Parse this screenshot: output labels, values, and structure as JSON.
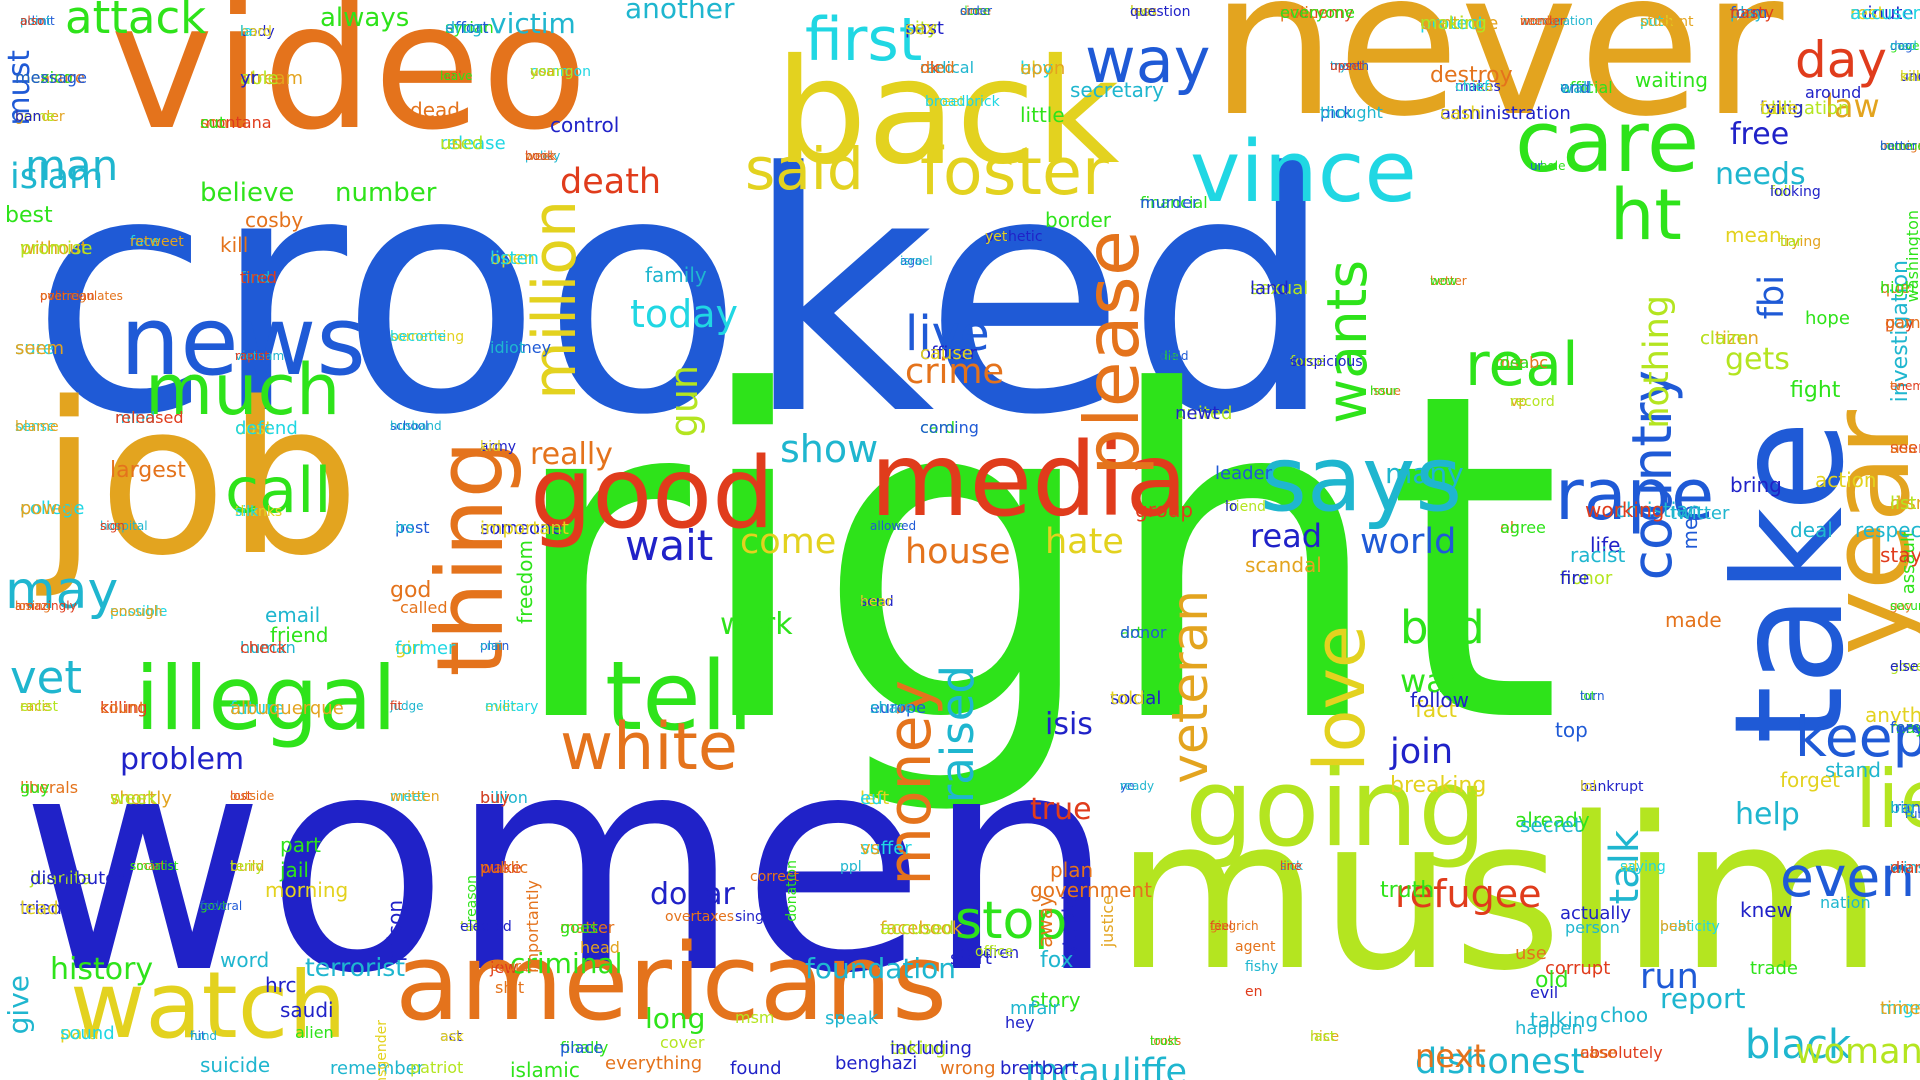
{
  "background": "#ffffff",
  "palette": {
    "blue": "#1f5ad6",
    "navy": "#2022c8",
    "green": "#2ee31a",
    "lime": "#b4e520",
    "orange": "#e4731c",
    "amber": "#e3a41f",
    "red": "#e03c1c",
    "cyan": "#20d7e3",
    "teal": "#1fb6cf",
    "yellow": "#e3d21f"
  },
  "words": [
    "crooked",
    "right",
    "women",
    "muslim",
    "never",
    "video",
    "job",
    "back",
    "take",
    "year",
    "going",
    "americans",
    "media",
    "good",
    "says",
    "vince",
    "illegal",
    "news",
    "watch",
    "tell",
    "care",
    "foster",
    "thing",
    "much",
    "way",
    "first",
    "said",
    "rape",
    "white",
    "please",
    "love",
    "day",
    "ht",
    "lie",
    "country",
    "real",
    "keep",
    "million",
    "call",
    "even",
    "money",
    "wants",
    "may",
    "refugee",
    "mcauliffe",
    "attack",
    "live",
    "stop",
    "world",
    "black",
    "dishonest",
    "veteran",
    "man",
    "vet",
    "wait",
    "death",
    "gun",
    "today",
    "woman",
    "nothing",
    "run",
    "talk",
    "house",
    "show",
    "hate",
    "islam",
    "crime",
    "bad",
    "raised",
    "come",
    "join",
    "read",
    "war",
    "fbi",
    "law",
    "problem",
    "next",
    "history",
    "dollar",
    "must",
    "criminal",
    "terrorist",
    "foundation",
    "report",
    "true",
    "gets",
    "needs",
    "help",
    "isis",
    "work",
    "many",
    "free",
    "really",
    "largest",
    "give",
    "long",
    "investigation",
    "best",
    "believe",
    "number",
    "another",
    "victim",
    "always",
    "secretary",
    "border",
    "little",
    "family",
    "control",
    "kill",
    "cosby",
    "dead",
    "destroy",
    "waiting",
    "mean",
    "around",
    "washington",
    "fight",
    "hope",
    "action",
    "bring",
    "assault",
    "fact",
    "breaking",
    "truth",
    "already",
    "follow",
    "top",
    "stand",
    "forget",
    "anything",
    "running",
    "nation",
    "knew",
    "actually",
    "secret",
    "person",
    "use",
    "corrupt",
    "old",
    "evil",
    "talking",
    "happen",
    "choo",
    "trade",
    "fox",
    "story",
    "fair",
    "mr",
    "hey",
    "start",
    "away",
    "stupid",
    "justice",
    "government",
    "plan",
    "leader",
    "group",
    "scandal",
    "life",
    "racist",
    "made",
    "deal",
    "men",
    "christian",
    "working",
    "twitter",
    "respect",
    "stay",
    "god",
    "called",
    "freedom",
    "email",
    "friend",
    "part",
    "jail",
    "morning",
    "word",
    "hrc",
    "saudi",
    "alien",
    "suicide",
    "remember",
    "patriot",
    "islamic",
    "everything",
    "found",
    "benghazi",
    "wrong",
    "breitbart",
    "speak",
    "msm",
    "cover",
    "head",
    "shit",
    "jew",
    "course",
    "transgender",
    "reason",
    "prison",
    "importantly",
    "donation",
    "overtaxes",
    "single",
    "correct",
    "ppl",
    "children",
    "office",
    "agent",
    "fishy",
    "en",
    "admit",
    "body",
    "syrian",
    "city",
    "since",
    "less",
    "economy",
    "protect",
    "immigration",
    "push",
    "form",
    "minute",
    "gave",
    "sad",
    "measure",
    "stream",
    "hell",
    "common",
    "radical",
    "el",
    "month",
    "makes",
    "official",
    "obligation",
    "immigrant",
    "gender",
    "montana",
    "release",
    "policy",
    "tweet",
    "pick",
    "administration",
    "whole",
    "full",
    "que",
    "without",
    "politician",
    "face",
    "find",
    "open",
    "ago",
    "pathetic",
    "financial",
    "sexual",
    "better",
    "trying",
    "pay",
    "sure",
    "vietnam",
    "something",
    "romney",
    "officer",
    "die",
    "force",
    "msnbc",
    "citizen",
    "enemy",
    "sense",
    "mind",
    "cost",
    "school",
    "army",
    "card",
    "united",
    "issue",
    "vp",
    "seen",
    "college",
    "hospital",
    "thanks",
    "post",
    "someone",
    "name",
    "friend",
    "oh",
    "disney",
    "amazingly",
    "possible",
    "human",
    "girl",
    "plain",
    "send",
    "article",
    "honor",
    "gay",
    "race",
    "killing",
    "future",
    "judge",
    "ever",
    "europe",
    "social",
    "lot",
    "governor",
    "liberals",
    "shortly",
    "lost",
    "meet",
    "billion",
    "left",
    "ye",
    "bankrupt",
    "maybe",
    "juanita",
    "smart",
    "build",
    "wake",
    "suffer",
    "sick",
    "ad",
    "iran",
    "tried",
    "govt",
    "tal",
    "matter",
    "facebook",
    "feel",
    "publicity",
    "wins",
    "paid",
    "hit",
    "act",
    "finally",
    "taking",
    "looks",
    "nice",
    "absolutely",
    "migrant",
    "point",
    "hard",
    "effort",
    "past",
    "done",
    "two",
    "police",
    "continue",
    "wonder",
    "put",
    "play",
    "rest",
    "dog",
    "understand",
    "mexico",
    "able",
    "safe",
    "usa",
    "ok",
    "boy",
    "try",
    "china",
    "end",
    "lying",
    "comment",
    "home",
    "son",
    "un",
    "book",
    "broadbrick",
    "thought",
    "cash",
    "ur",
    "looking",
    "high",
    "promise",
    "overregulates",
    "retweet",
    "tired",
    "listen",
    "israel",
    "yet",
    "murder",
    "land",
    "wow",
    "liar",
    "game",
    "seem",
    "rapist",
    "become",
    "idiot",
    "cause",
    "child",
    "suspicious",
    "idea",
    "claim",
    "tv",
    "blame",
    "released",
    "defend",
    "husband",
    "kid",
    "coming",
    "newt",
    "hour",
    "record",
    "ass",
    "power",
    "sign",
    "silk",
    "irs",
    "important",
    "allowed",
    "lo",
    "agree",
    "list",
    "losing",
    "enough",
    "check",
    "former",
    "cnn",
    "hear",
    "donor",
    "fire",
    "security",
    "enlist",
    "count",
    "albuquerque",
    "fit",
    "military",
    "share",
    "told",
    "turn",
    "else",
    "guy",
    "week",
    "outside",
    "written",
    "buy",
    "eu",
    "ready",
    "lol",
    "foreign",
    "distributed",
    "socialist",
    "terry",
    "public",
    "vs",
    "line",
    "saying",
    "big",
    "lead",
    "federal",
    "elected",
    "goes",
    "accused",
    "gingrich",
    "beat",
    "diamond",
    "sound",
    "fund",
    "ask",
    "place",
    "including",
    "trust",
    "last",
    "case",
    "times",
    "also",
    "la",
    "drug",
    "sex",
    "order",
    "question",
    "everyone",
    "making",
    "needs",
    "student",
    "nasty",
    "accuser",
    "med",
    "killed",
    "message",
    "yr",
    "leave",
    "young",
    "died",
    "upon",
    "upset",
    "chief",
    "wall",
    "fake",
    "better",
    "ban",
    "cut",
    "used",
    "week"
  ]
}
